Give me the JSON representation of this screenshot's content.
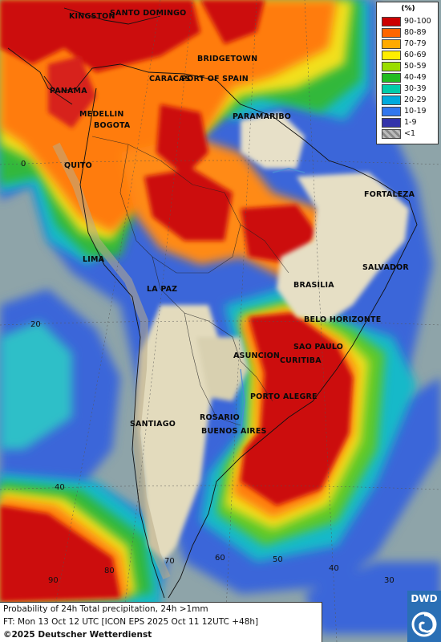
{
  "legend": {
    "unit": "(%)",
    "bins": [
      {
        "label": "90-100",
        "color": "#cc0000"
      },
      {
        "label": "80-89",
        "color": "#ff6600"
      },
      {
        "label": "70-79",
        "color": "#ffaa00"
      },
      {
        "label": "60-69",
        "color": "#ffee00"
      },
      {
        "label": "50-59",
        "color": "#99dd00"
      },
      {
        "label": "40-49",
        "color": "#22bb22"
      },
      {
        "label": "30-39",
        "color": "#00ccaa"
      },
      {
        "label": "20-29",
        "color": "#00aadd"
      },
      {
        "label": "10-19",
        "color": "#3377ee"
      },
      {
        "label": "1-9",
        "color": "#3333aa"
      },
      {
        "label": "<1",
        "color": "#bbbbbb"
      }
    ]
  },
  "cities": [
    "KINGSTON",
    "SANTO DOMINGO",
    "BRIDGETOWN",
    "PANAMA",
    "CARACAS",
    "PORT OF SPAIN",
    "MEDELLIN",
    "BOGOTA",
    "PARAMARIBO",
    "QUITO",
    "FORTALEZA",
    "LIMA",
    "SALVADOR",
    "BRASILIA",
    "LA PAZ",
    "BELO HORIZONTE",
    "SAO PAULO",
    "ASUNCION",
    "CURITIBA",
    "PORTO ALEGRE",
    "SANTIAGO",
    "ROSARIO",
    "BUENOS AIRES"
  ],
  "grid_labels": [
    "0",
    "20",
    "40",
    "90",
    "80",
    "70",
    "60",
    "50",
    "40",
    "30"
  ],
  "caption": {
    "line1": "Probability of 24h Total precipitation, 24h >1mm",
    "line2": "FT: Mon 13 Oct 12 UTC [ICON EPS 2025 Oct 11 12UTC +48h]",
    "line3": "©2025 Deutscher Wetterdienst"
  },
  "logo": {
    "text": "DWD"
  }
}
